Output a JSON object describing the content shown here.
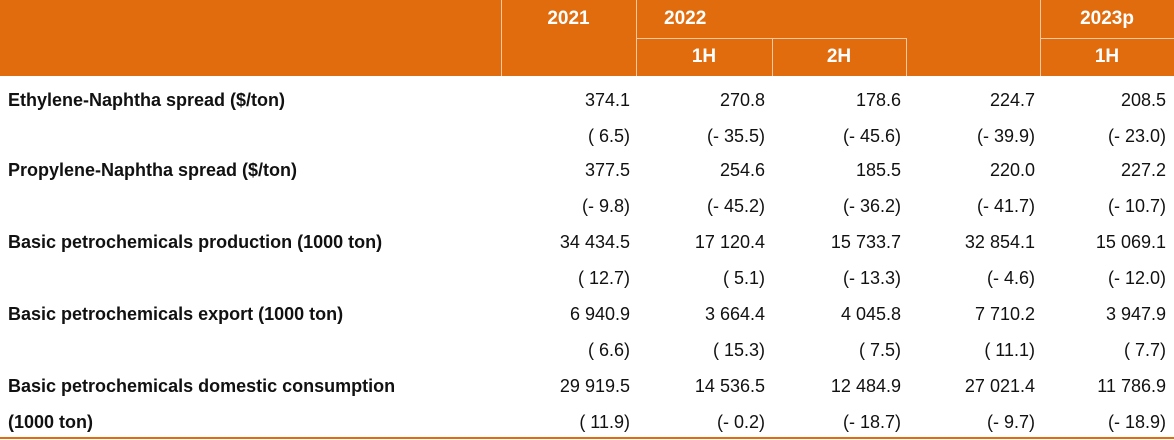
{
  "header": {
    "year_2021": "2021",
    "year_2022": "2022",
    "year_2023": "2023p",
    "sub_2022_1h": "1H",
    "sub_2022_2h": "2H",
    "sub_2023_1h": "1H"
  },
  "rows": [
    {
      "label": "Ethylene-Naphtha spread ($/ton)",
      "values": [
        "374.1",
        "270.8",
        "178.6",
        "224.7",
        "208.5"
      ],
      "changes": [
        "( 6.5)",
        "(- 35.5)",
        "(- 45.6)",
        "(- 39.9)",
        "(- 23.0)"
      ]
    },
    {
      "label": "Propylene-Naphtha spread ($/ton)",
      "values": [
        "377.5",
        "254.6",
        "185.5",
        "220.0",
        "227.2"
      ],
      "changes": [
        "(- 9.8)",
        "(- 45.2)",
        "(- 36.2)",
        "(- 41.7)",
        "(- 10.7)"
      ]
    },
    {
      "label": "Basic petrochemicals production (1000 ton)",
      "values": [
        "34 434.5",
        "17 120.4",
        "15 733.7",
        "32 854.1",
        "15 069.1"
      ],
      "changes": [
        "( 12.7)",
        "( 5.1)",
        "(- 13.3)",
        "(- 4.6)",
        "(- 12.0)"
      ]
    },
    {
      "label": "Basic petrochemicals export (1000 ton)",
      "values": [
        "6 940.9",
        "3 664.4",
        "4 045.8",
        "7 710.2",
        "3 947.9"
      ],
      "changes": [
        "( 6.6)",
        "( 15.3)",
        "( 7.5)",
        "( 11.1)",
        "( 7.7)"
      ]
    },
    {
      "label": "Basic petrochemicals domestic consumption",
      "label_line2": "(1000 ton)",
      "values": [
        "29 919.5",
        "14 536.5",
        "12 484.9",
        "27 021.4",
        "11 786.9"
      ],
      "changes": [
        "( 11.9)",
        "(- 0.2)",
        "(- 18.7)",
        "(- 9.7)",
        "(- 18.9)"
      ]
    }
  ],
  "colors": {
    "header_bg": "#e06c0e",
    "header_text": "#ffffff",
    "body_text": "#111111"
  }
}
